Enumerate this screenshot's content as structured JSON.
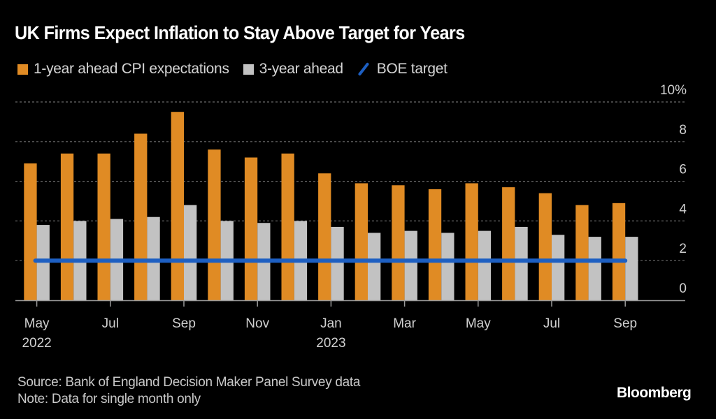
{
  "chart_data": {
    "type": "bar",
    "title": "UK Firms Expect Inflation to Stay Above Target for Years",
    "xlabel": "",
    "ylabel": "",
    "ylim": [
      0,
      10
    ],
    "yticks": [
      0,
      2,
      4,
      6,
      8,
      10
    ],
    "ytick_labels": [
      "0",
      "2",
      "4",
      "6",
      "8",
      "10%"
    ],
    "grid": true,
    "legend_position": "top-left",
    "categories": [
      "May 2022",
      "Jun 2022",
      "Jul 2022",
      "Aug 2022",
      "Sep 2022",
      "Oct 2022",
      "Nov 2022",
      "Dec 2022",
      "Jan 2023",
      "Feb 2023",
      "Mar 2023",
      "Apr 2023",
      "May 2023",
      "Jun 2023",
      "Jul 2023",
      "Aug 2023",
      "Sep 2023"
    ],
    "xtick_labels": [
      {
        "index": 0,
        "line1": "May",
        "line2": "2022"
      },
      {
        "index": 2,
        "line1": "Jul",
        "line2": ""
      },
      {
        "index": 4,
        "line1": "Sep",
        "line2": ""
      },
      {
        "index": 6,
        "line1": "Nov",
        "line2": ""
      },
      {
        "index": 8,
        "line1": "Jan",
        "line2": "2023"
      },
      {
        "index": 10,
        "line1": "Mar",
        "line2": ""
      },
      {
        "index": 12,
        "line1": "May",
        "line2": ""
      },
      {
        "index": 14,
        "line1": "Jul",
        "line2": ""
      },
      {
        "index": 16,
        "line1": "Sep",
        "line2": ""
      }
    ],
    "series": [
      {
        "name": "1-year ahead CPI expectations",
        "kind": "bar",
        "color": "#E08B24",
        "values": [
          6.9,
          7.4,
          7.4,
          8.4,
          9.5,
          7.6,
          7.2,
          7.4,
          6.4,
          5.9,
          5.8,
          5.6,
          5.9,
          5.7,
          5.4,
          4.8,
          4.9
        ]
      },
      {
        "name": "3-year ahead",
        "kind": "bar",
        "color": "#C2C2C2",
        "values": [
          3.8,
          4.0,
          4.1,
          4.2,
          4.8,
          4.0,
          3.9,
          4.0,
          3.7,
          3.4,
          3.5,
          3.4,
          3.5,
          3.7,
          3.3,
          3.2,
          3.2
        ]
      },
      {
        "name": "BOE target",
        "kind": "line",
        "color": "#1D5FC2",
        "values": [
          2,
          2,
          2,
          2,
          2,
          2,
          2,
          2,
          2,
          2,
          2,
          2,
          2,
          2,
          2,
          2,
          2
        ]
      }
    ]
  },
  "footer": {
    "source": "Source: Bank of England Decision Maker Panel Survey data",
    "note": "Note: Data for single month only"
  },
  "brand": "Bloomberg"
}
